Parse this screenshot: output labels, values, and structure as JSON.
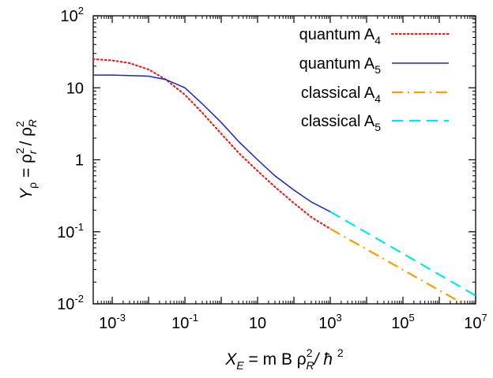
{
  "colors": {
    "quantum_a4": "#e8201a",
    "quantum_a5": "#1a25c8",
    "classical_a4": "#f5a000",
    "classical_a5": "#00e5ee"
  },
  "chart_data": {
    "type": "line",
    "xscale": "log",
    "yscale": "log",
    "xlim": [
      0.0003,
      10000000
    ],
    "ylim": [
      0.01,
      100
    ],
    "grid": false,
    "legend_position": "top-right",
    "xlabel": {
      "main": "X",
      "sub": "E",
      "mid": " = m B ρ",
      "sup": "2",
      "sub2": "R",
      "tail": "/ ħ ",
      "sup2": "2"
    },
    "ylabel": {
      "main": "Y",
      "sub": "ρ",
      "mid": " = ρ",
      "sup": "2",
      "sub2": "r",
      "mid2": " / ρ",
      "sup2": "2",
      "sub3": "R"
    },
    "x_ticks": [
      {
        "value": 0.001,
        "base": "10",
        "exp": "-3"
      },
      {
        "value": 0.1,
        "base": "10",
        "exp": "-1"
      },
      {
        "value": 10,
        "base": "10",
        "exp": ""
      },
      {
        "value": 1000,
        "base": "10",
        "exp": "3"
      },
      {
        "value": 100000,
        "base": "10",
        "exp": "5"
      },
      {
        "value": 10000000,
        "base": "10",
        "exp": "7"
      }
    ],
    "y_ticks": [
      {
        "value": 0.01,
        "base": "10",
        "exp": "-2"
      },
      {
        "value": 0.1,
        "base": "10",
        "exp": "-1"
      },
      {
        "value": 1,
        "base": "1",
        "exp": ""
      },
      {
        "value": 10,
        "base": "10",
        "exp": ""
      },
      {
        "value": 100,
        "base": "10",
        "exp": "2"
      }
    ],
    "series": [
      {
        "name": "quantum A",
        "sub": "4",
        "color_key": "quantum_a4",
        "style": "dotted",
        "x": [
          0.0003,
          0.001,
          0.003,
          0.01,
          0.03,
          0.1,
          0.3,
          1,
          3,
          10,
          30,
          100,
          300,
          1000
        ],
        "y": [
          25,
          24,
          22,
          18,
          13,
          8,
          4.5,
          2.3,
          1.25,
          0.7,
          0.42,
          0.25,
          0.16,
          0.11
        ]
      },
      {
        "name": "quantum A",
        "sub": "5",
        "color_key": "quantum_a5",
        "style": "solid",
        "x": [
          0.0003,
          0.001,
          0.003,
          0.01,
          0.03,
          0.1,
          0.3,
          1,
          3,
          10,
          30,
          100,
          300,
          1000
        ],
        "y": [
          15,
          15,
          14.8,
          14.5,
          13,
          10,
          6,
          3.3,
          1.8,
          1.0,
          0.6,
          0.38,
          0.26,
          0.19
        ]
      },
      {
        "name": "classical A",
        "sub": "4",
        "color_key": "classical_a4",
        "style": "dashdot",
        "x": [
          1000,
          10000000
        ],
        "y": [
          0.11,
          0.008
        ]
      },
      {
        "name": "classical A",
        "sub": "5",
        "color_key": "classical_a5",
        "style": "dashed",
        "x": [
          1000,
          10000000
        ],
        "y": [
          0.19,
          0.013
        ]
      }
    ]
  }
}
